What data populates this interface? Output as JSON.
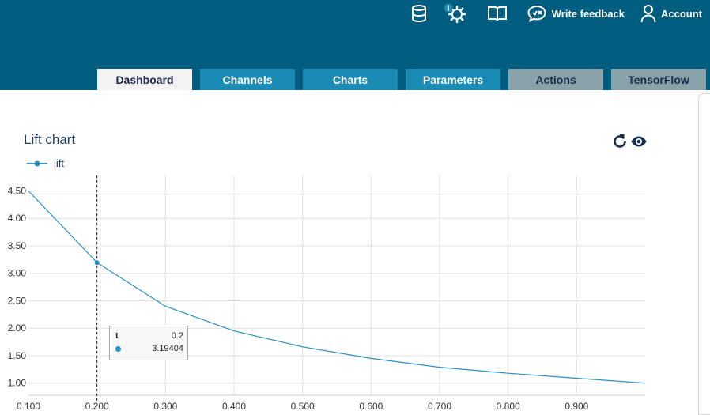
{
  "header": {
    "actions": [
      {
        "icon": "database-icon",
        "label": ""
      },
      {
        "icon": "settings-info-icon",
        "label": ""
      },
      {
        "icon": "book-icon",
        "label": ""
      },
      {
        "icon": "feedback-icon",
        "label": "Write feedback"
      },
      {
        "icon": "user-icon",
        "label": "Account"
      }
    ]
  },
  "tabs": [
    {
      "label": "Dashboard",
      "state": "active"
    },
    {
      "label": "Channels",
      "state": "enabled"
    },
    {
      "label": "Charts",
      "state": "enabled"
    },
    {
      "label": "Parameters",
      "state": "enabled"
    },
    {
      "label": "Actions",
      "state": "disabled"
    },
    {
      "label": "TensorFlow",
      "state": "disabled"
    }
  ],
  "chart_panel": {
    "title": "Lift chart",
    "refresh_icon": "refresh-icon",
    "visibility_icon": "eye-icon"
  },
  "colors": {
    "header_bg": "#005d7f",
    "tab_active_bg": "#f3f3f3",
    "tab_blue_bg": "#1a8bb5",
    "tab_grey_bg": "#8aa3aa",
    "series": "#2a8fc0",
    "title_text": "#1e3a5c"
  },
  "chart_data": {
    "type": "line",
    "title": "Lift chart",
    "xlabel": "",
    "ylabel": "",
    "xlim": [
      0.1,
      1.0
    ],
    "ylim": [
      0.78,
      4.78
    ],
    "x_ticks": [
      "0.100",
      "0.200",
      "0.300",
      "0.400",
      "0.500",
      "0.600",
      "0.700",
      "0.800",
      "0.900"
    ],
    "y_ticks": [
      "1.00",
      "1.50",
      "2.00",
      "2.50",
      "3.00",
      "3.50",
      "4.00",
      "4.50"
    ],
    "grid": true,
    "legend": "top-left",
    "series": [
      {
        "name": "lift",
        "x": [
          0.1,
          0.2,
          0.3,
          0.4,
          0.5,
          0.6,
          0.7,
          0.8,
          0.9,
          1.0
        ],
        "values": [
          4.5,
          3.19404,
          2.4,
          1.95,
          1.66,
          1.45,
          1.29,
          1.18,
          1.09,
          1.0
        ]
      }
    ],
    "cursor": {
      "x": 0.2
    },
    "tooltip": {
      "key": "t",
      "x_value": "0.2",
      "y_value": "3.19404"
    }
  }
}
